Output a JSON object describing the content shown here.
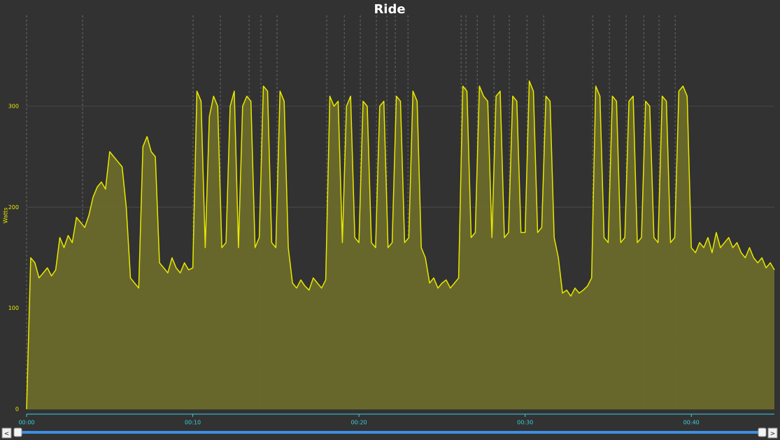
{
  "chart_data": {
    "type": "area-line",
    "title": "Ride",
    "y_label": "Watts",
    "xlim": [
      0,
      45
    ],
    "ylim": [
      0,
      390
    ],
    "xticks": [
      {
        "value": 0,
        "label": "00:00"
      },
      {
        "value": 10,
        "label": "00:10"
      },
      {
        "value": 20,
        "label": "00:20"
      },
      {
        "value": 30,
        "label": "00:30"
      },
      {
        "value": 40,
        "label": "00:40"
      }
    ],
    "yticks": [
      0,
      100,
      200,
      300
    ],
    "grid": true,
    "markers": [
      0,
      3.37,
      10.02,
      11.66,
      13.39,
      14.1,
      15.07,
      18.06,
      19.12,
      20.08,
      21.05,
      21.68,
      22.19,
      22.95,
      26.15,
      26.44,
      27.12,
      28.13,
      29.05,
      30.11,
      31.12,
      34.06,
      35.07,
      36.08,
      37.14,
      38.06,
      39.03
    ],
    "x": [
      0,
      0.25,
      0.5,
      0.75,
      1,
      1.25,
      1.5,
      1.75,
      2,
      2.25,
      2.5,
      2.75,
      3,
      3.25,
      3.5,
      3.75,
      4,
      4.25,
      4.5,
      4.75,
      5,
      5.25,
      5.5,
      5.75,
      6,
      6.25,
      6.5,
      6.75,
      7,
      7.25,
      7.5,
      7.75,
      8,
      8.25,
      8.5,
      8.75,
      9,
      9.25,
      9.5,
      9.75,
      10,
      10.25,
      10.5,
      10.75,
      11,
      11.25,
      11.5,
      11.75,
      12,
      12.25,
      12.5,
      12.75,
      13,
      13.25,
      13.5,
      13.75,
      14,
      14.25,
      14.5,
      14.75,
      15,
      15.25,
      15.5,
      15.75,
      16,
      16.25,
      16.5,
      16.75,
      17,
      17.25,
      17.5,
      17.75,
      18,
      18.25,
      18.5,
      18.75,
      19,
      19.25,
      19.5,
      19.75,
      20,
      20.25,
      20.5,
      20.75,
      21,
      21.25,
      21.5,
      21.75,
      22,
      22.25,
      22.5,
      22.75,
      23,
      23.25,
      23.5,
      23.75,
      24,
      24.25,
      24.5,
      24.75,
      25,
      25.25,
      25.5,
      25.75,
      26,
      26.25,
      26.5,
      26.75,
      27,
      27.25,
      27.5,
      27.75,
      28,
      28.25,
      28.5,
      28.75,
      29,
      29.25,
      29.5,
      29.75,
      30,
      30.25,
      30.5,
      30.75,
      31,
      31.25,
      31.5,
      31.75,
      32,
      32.25,
      32.5,
      32.75,
      33,
      33.25,
      33.5,
      33.75,
      34,
      34.25,
      34.5,
      34.75,
      35,
      35.25,
      35.5,
      35.75,
      36,
      36.25,
      36.5,
      36.75,
      37,
      37.25,
      37.5,
      37.75,
      38,
      38.25,
      38.5,
      38.75,
      39,
      39.25,
      39.5,
      39.75,
      40,
      40.25,
      40.5,
      40.75,
      41,
      41.25,
      41.5,
      41.75,
      42,
      42.25,
      42.5,
      42.75,
      43,
      43.25,
      43.5,
      43.75,
      44,
      44.25,
      44.5,
      44.75,
      45
    ],
    "series": [
      {
        "name": "Watts",
        "color": "#e8e800",
        "fill": "#6a6a2c",
        "values": [
          0,
          150,
          145,
          130,
          135,
          140,
          132,
          138,
          170,
          160,
          172,
          165,
          190,
          185,
          180,
          192,
          210,
          220,
          225,
          218,
          255,
          250,
          245,
          240,
          200,
          130,
          125,
          120,
          260,
          270,
          255,
          250,
          145,
          140,
          135,
          150,
          140,
          135,
          145,
          138,
          140,
          315,
          305,
          160,
          290,
          310,
          300,
          160,
          165,
          300,
          315,
          160,
          300,
          310,
          305,
          160,
          170,
          320,
          315,
          165,
          160,
          315,
          305,
          160,
          125,
          120,
          128,
          122,
          118,
          130,
          125,
          120,
          128,
          310,
          300,
          305,
          165,
          300,
          310,
          170,
          165,
          305,
          300,
          165,
          160,
          300,
          305,
          160,
          165,
          310,
          305,
          165,
          170,
          315,
          305,
          160,
          150,
          125,
          130,
          120,
          125,
          128,
          120,
          125,
          130,
          320,
          315,
          170,
          175,
          320,
          310,
          305,
          170,
          310,
          315,
          170,
          175,
          310,
          305,
          175,
          175,
          325,
          315,
          175,
          180,
          310,
          305,
          170,
          150,
          115,
          118,
          112,
          120,
          115,
          118,
          122,
          130,
          320,
          310,
          170,
          165,
          310,
          305,
          165,
          170,
          305,
          310,
          165,
          170,
          305,
          300,
          170,
          165,
          310,
          305,
          165,
          170,
          315,
          320,
          310,
          160,
          155,
          165,
          160,
          170,
          155,
          175,
          160,
          165,
          170,
          160,
          165,
          155,
          150,
          160,
          150,
          145,
          150,
          140,
          145,
          138
        ]
      }
    ]
  },
  "scrollbar": {
    "left": "<",
    "right": ">"
  }
}
